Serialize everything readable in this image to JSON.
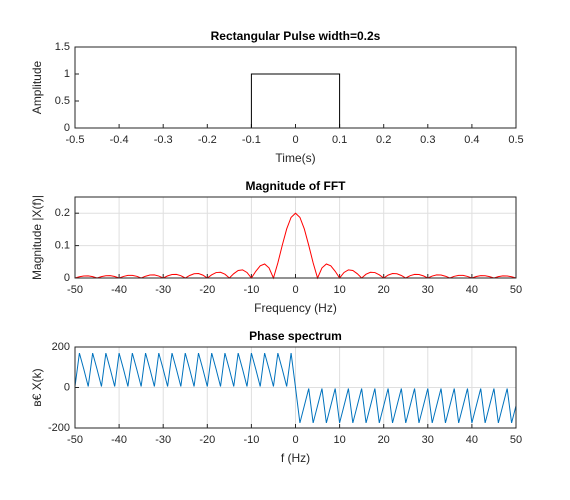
{
  "chart_data": [
    {
      "type": "line",
      "title": "Rectangular Pulse width=0.2s",
      "xlabel": "Time(s)",
      "ylabel": "Amplitude",
      "x": [
        -0.5,
        -0.1,
        -0.1,
        0.1,
        0.1,
        0.5
      ],
      "values": [
        0,
        0,
        1,
        1,
        0,
        0
      ],
      "color": "#000000",
      "xlim": [
        -0.5,
        0.5
      ],
      "xticks": [
        -0.5,
        -0.4,
        -0.3,
        -0.2,
        -0.1,
        0,
        0.1,
        0.2,
        0.3,
        0.4,
        0.5
      ],
      "ylim": [
        0,
        1.5
      ],
      "yticks": [
        0,
        0.5,
        1,
        1.5
      ],
      "grid": false
    },
    {
      "type": "line",
      "title": "Magnitude of FFT",
      "xlabel": "Frequency (Hz)",
      "ylabel": "Magnitude |X(f)|",
      "x": [
        -50,
        -49,
        -48,
        -47,
        -46,
        -45,
        -44,
        -43,
        -42,
        -41,
        -40,
        -39,
        -38,
        -37,
        -36,
        -35,
        -34,
        -33,
        -32,
        -31,
        -30,
        -29,
        -28,
        -27,
        -26,
        -25,
        -24,
        -23,
        -22,
        -21,
        -20,
        -19,
        -18,
        -17,
        -16,
        -15,
        -14,
        -13,
        -12,
        -11,
        -10,
        -9,
        -8,
        -7,
        -6,
        -5,
        -4,
        -3,
        -2,
        -1,
        0,
        1,
        2,
        3,
        4,
        5,
        6,
        7,
        8,
        9,
        10,
        11,
        12,
        13,
        14,
        15,
        16,
        17,
        18,
        19,
        20,
        21,
        22,
        23,
        24,
        25,
        26,
        27,
        28,
        29,
        30,
        31,
        32,
        33,
        34,
        35,
        36,
        37,
        38,
        39,
        40,
        41,
        42,
        43,
        44,
        45,
        46,
        47,
        48,
        49,
        50
      ],
      "values": [
        0,
        0.0038,
        0.0063,
        0.0064,
        0.0041,
        0,
        0.0043,
        0.007,
        0.0072,
        0.0046,
        0,
        0.0048,
        0.008,
        0.0082,
        0.0052,
        0,
        0.0055,
        0.0092,
        0.0095,
        0.006,
        0,
        0.0065,
        0.0108,
        0.0112,
        0.0072,
        0,
        0.0078,
        0.0132,
        0.0138,
        0.0089,
        0,
        0.0098,
        0.0168,
        0.0178,
        0.0117,
        0,
        0.0134,
        0.0233,
        0.0252,
        0.017,
        0,
        0.0208,
        0.0378,
        0.0432,
        0.0312,
        0,
        0.0468,
        0.1009,
        0.1514,
        0.1871,
        0.2,
        0.1871,
        0.1514,
        0.1009,
        0.0468,
        0,
        0.0312,
        0.0432,
        0.0378,
        0.0208,
        0,
        0.017,
        0.0252,
        0.0233,
        0.0134,
        0,
        0.0117,
        0.0178,
        0.0168,
        0.0098,
        0,
        0.0089,
        0.0138,
        0.0132,
        0.0078,
        0,
        0.0072,
        0.0112,
        0.0108,
        0.0065,
        0,
        0.006,
        0.0095,
        0.0092,
        0.0055,
        0,
        0.0052,
        0.0082,
        0.008,
        0.0048,
        0,
        0.0046,
        0.0072,
        0.007,
        0.0043,
        0,
        0.0041,
        0.0064,
        0.0063,
        0.0038,
        0
      ],
      "color": "#ff0000",
      "xlim": [
        -50,
        50
      ],
      "xticks": [
        -50,
        -40,
        -30,
        -20,
        -10,
        0,
        10,
        20,
        30,
        40,
        50
      ],
      "ylim": [
        0,
        0.25
      ],
      "yticks": [
        0,
        0.1,
        0.2
      ],
      "grid": true
    },
    {
      "type": "line",
      "title": "Phase spectrum",
      "xlabel": "f (Hz)",
      "ylabel": "в€ X(k)",
      "x": [
        -50,
        -49,
        -48,
        -47,
        -46,
        -45,
        -44,
        -43,
        -42,
        -41,
        -40,
        -39,
        -38,
        -37,
        -36,
        -35,
        -34,
        -33,
        -32,
        -31,
        -30,
        -29,
        -28,
        -27,
        -26,
        -25,
        -24,
        -23,
        -22,
        -21,
        -20,
        -19,
        -18,
        -17,
        -16,
        -15,
        -14,
        -13,
        -12,
        -11,
        -10,
        -9,
        -8,
        -7,
        -6,
        -5,
        -4,
        -3,
        -2,
        -1,
        0,
        1,
        2,
        3,
        4,
        5,
        6,
        7,
        8,
        9,
        10,
        11,
        12,
        13,
        14,
        15,
        16,
        17,
        18,
        19,
        20,
        21,
        22,
        23,
        24,
        25,
        26,
        27,
        28,
        29,
        30,
        31,
        32,
        33,
        34,
        35,
        36,
        37,
        38,
        39,
        40,
        41,
        42,
        43,
        44,
        45,
        46,
        47,
        48,
        49,
        50
      ],
      "values": [
        5,
        170,
        90,
        5,
        170,
        90,
        5,
        170,
        90,
        5,
        170,
        90,
        5,
        170,
        90,
        5,
        170,
        90,
        5,
        170,
        90,
        5,
        170,
        90,
        5,
        170,
        90,
        5,
        170,
        90,
        5,
        170,
        90,
        5,
        170,
        90,
        5,
        170,
        90,
        5,
        170,
        90,
        5,
        170,
        90,
        5,
        170,
        90,
        5,
        170,
        0,
        -175,
        -90,
        -5,
        -175,
        -90,
        -5,
        -175,
        -90,
        -5,
        -175,
        -90,
        -5,
        -175,
        -90,
        -5,
        -175,
        -90,
        -5,
        -175,
        -90,
        -5,
        -175,
        -90,
        -5,
        -175,
        -90,
        -5,
        -175,
        -90,
        -5,
        -175,
        -90,
        -5,
        -175,
        -90,
        -5,
        -175,
        -90,
        -5,
        -175,
        -90,
        -5,
        -175,
        -90,
        -5,
        -175,
        -90,
        -5,
        -175,
        -90
      ],
      "color": "#0072bd",
      "xlim": [
        -50,
        50
      ],
      "xticks": [
        -50,
        -40,
        -30,
        -20,
        -10,
        0,
        10,
        20,
        30,
        40,
        50
      ],
      "ylim": [
        -200,
        200
      ],
      "yticks": [
        -200,
        0,
        200
      ],
      "grid": true
    }
  ]
}
